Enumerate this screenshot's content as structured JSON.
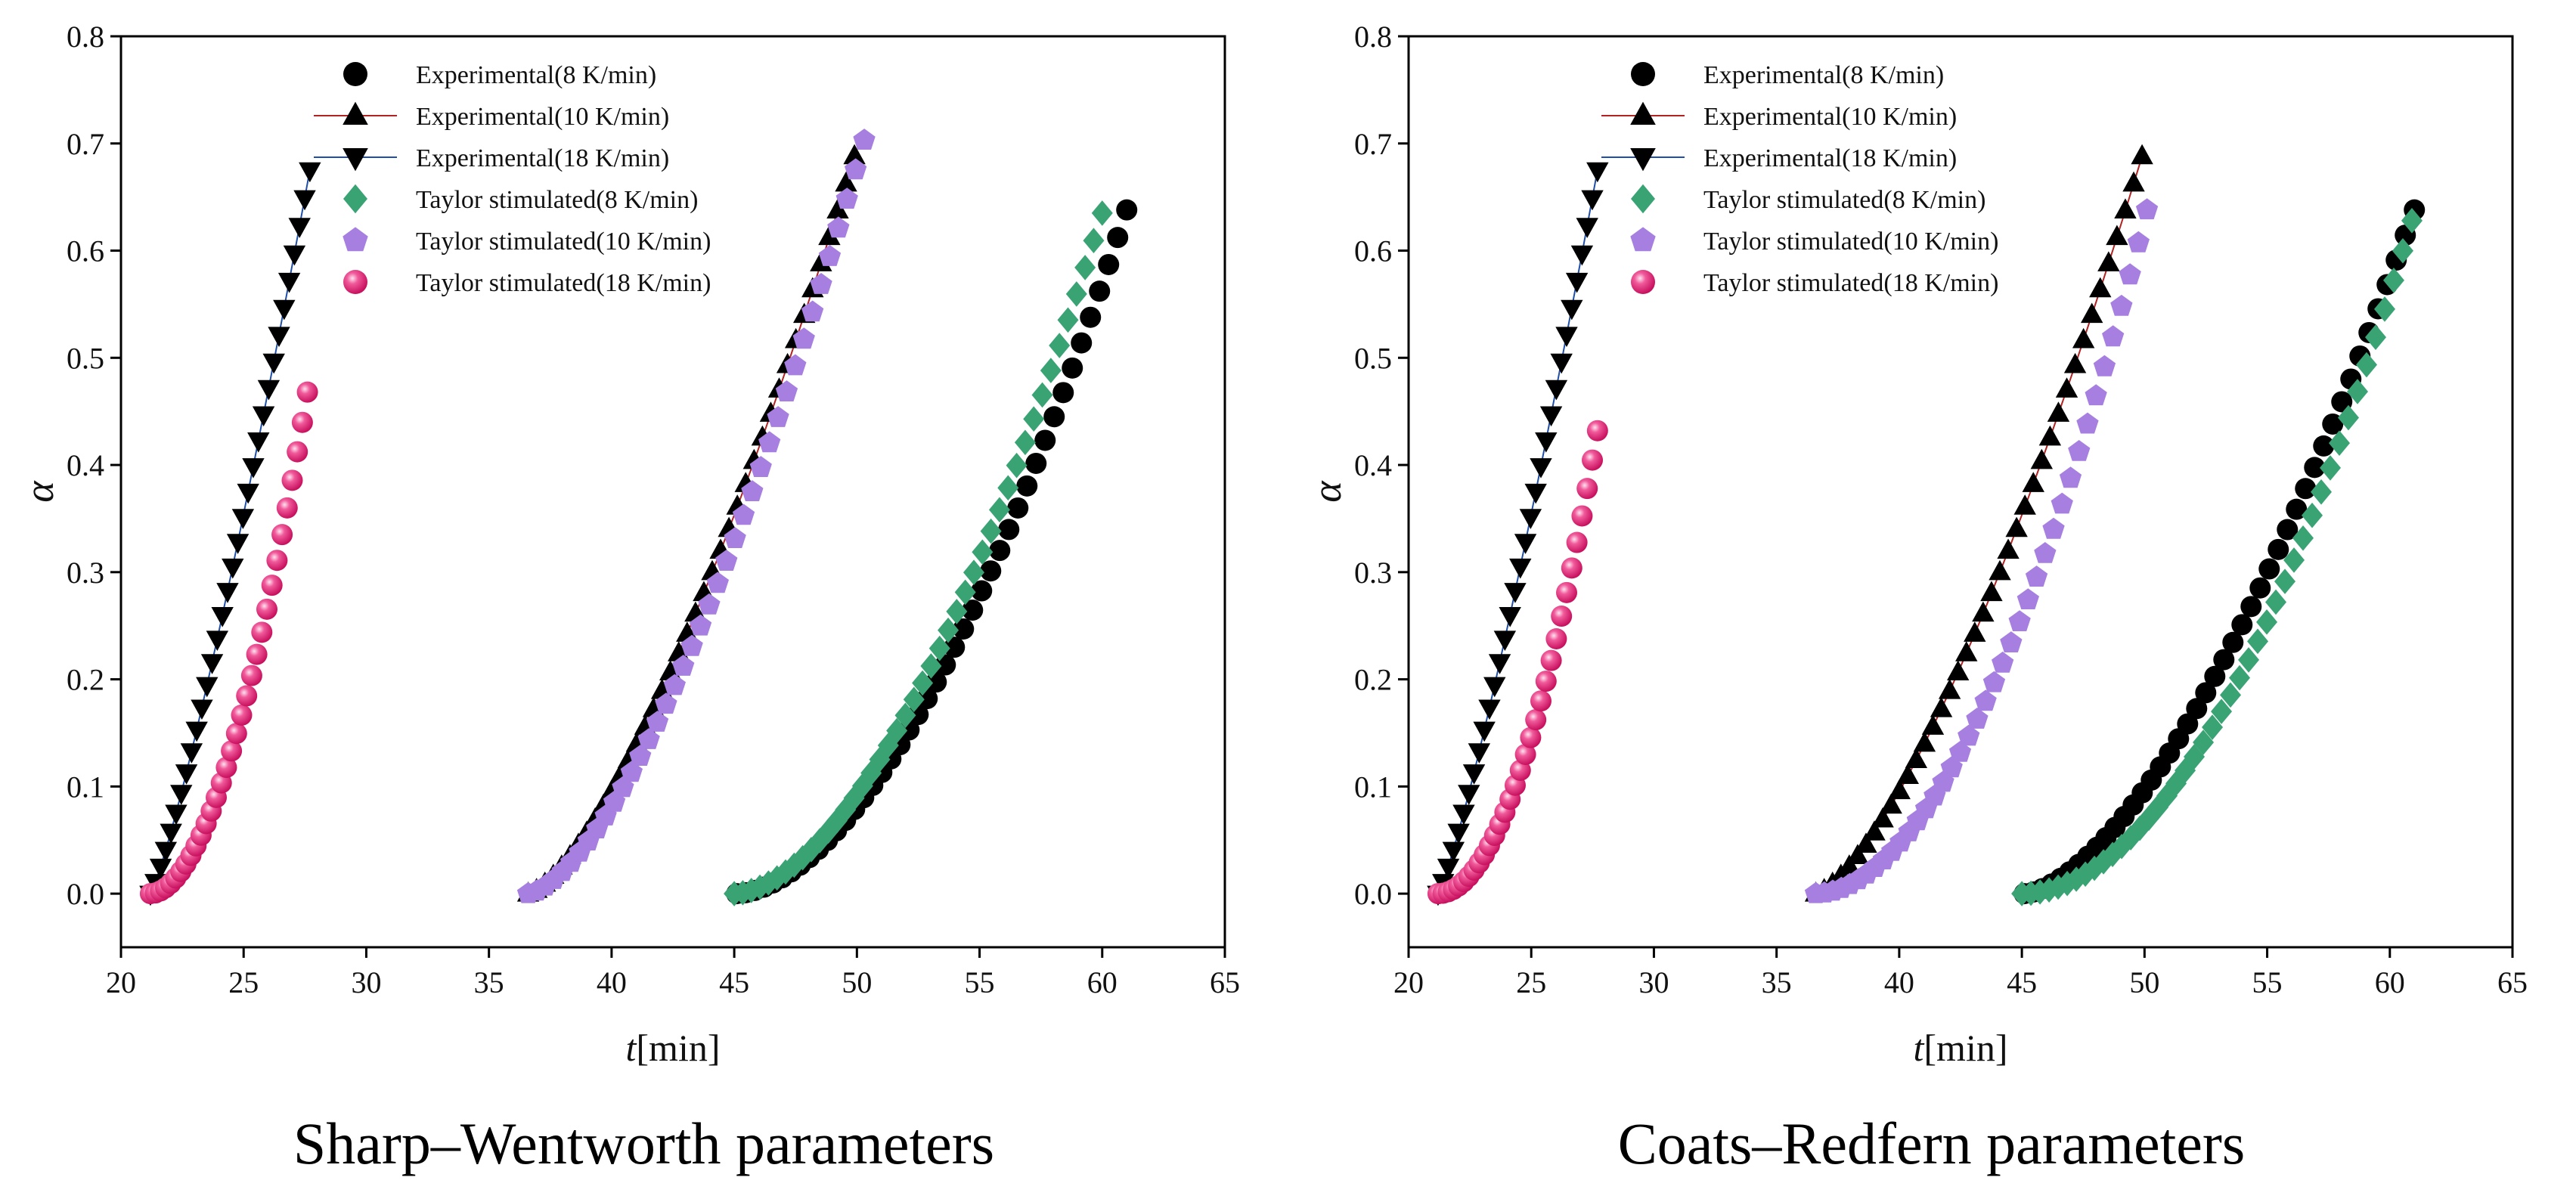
{
  "chart_data": [
    {
      "type": "scatter",
      "caption": "Sharp–Wentworth parameters",
      "xlabel_italic": "t",
      "xlabel_rest": "[min]",
      "ylabel": "α",
      "xlim": [
        20,
        65
      ],
      "ylim": [
        -0.05,
        0.8
      ],
      "xticks": [
        "20",
        "25",
        "30",
        "35",
        "40",
        "45",
        "50",
        "55",
        "60",
        "65"
      ],
      "yticks": [
        "0.0",
        "0.1",
        "0.2",
        "0.3",
        "0.4",
        "0.5",
        "0.6",
        "0.7",
        "0.8"
      ],
      "legend_position": "top-center",
      "series": [
        {
          "name": "Experimental(8 K/min)",
          "marker": "circle",
          "color": "#000000",
          "line": false,
          "t0": 45.1,
          "t1": 61.0,
          "a0": 0.0,
          "a1": 0.638,
          "p": 1.75,
          "n": 44
        },
        {
          "name": "Experimental(10 K/min)",
          "marker": "triangle-up",
          "color": "#000000",
          "line": true,
          "line_color": "#b22222",
          "t0": 36.6,
          "t1": 49.9,
          "a0": 0.0,
          "a1": 0.688,
          "p": 1.45,
          "n": 40
        },
        {
          "name": "Experimental(18 K/min)",
          "marker": "triangle-down",
          "color": "#000000",
          "line": true,
          "line_color": "#1f4fa8",
          "t0": 21.2,
          "t1": 27.7,
          "a0": 0.0,
          "a1": 0.675,
          "p": 1.2,
          "n": 32
        },
        {
          "name": "Taylor stimulated(8 K/min)",
          "marker": "diamond",
          "color": "#3aa374",
          "line": false,
          "t0": 45.0,
          "t1": 60.0,
          "a0": 0.0,
          "a1": 0.635,
          "p": 1.75,
          "n": 44
        },
        {
          "name": "Taylor stimulated(10 K/min)",
          "marker": "pentagon",
          "color": "#a77fe0",
          "line": false,
          "t0": 36.6,
          "t1": 50.3,
          "a0": 0.0,
          "a1": 0.703,
          "p": 1.55,
          "n": 40
        },
        {
          "name": "Taylor stimulated(18 K/min)",
          "marker": "sphere",
          "color": "#e8207a",
          "line": false,
          "t0": 21.2,
          "t1": 27.6,
          "a0": 0.0,
          "a1": 0.468,
          "p": 1.9,
          "n": 32
        }
      ]
    },
    {
      "type": "scatter",
      "caption": "Coats–Redfern parameters",
      "xlabel_italic": "t",
      "xlabel_rest": "[min]",
      "ylabel": "α",
      "xlim": [
        20,
        65
      ],
      "ylim": [
        -0.05,
        0.8
      ],
      "xticks": [
        "20",
        "25",
        "30",
        "35",
        "40",
        "45",
        "50",
        "55",
        "60",
        "65"
      ],
      "yticks": [
        "0.0",
        "0.1",
        "0.2",
        "0.3",
        "0.4",
        "0.5",
        "0.6",
        "0.7",
        "0.8"
      ],
      "legend_position": "top-center",
      "series": [
        {
          "name": "Experimental(8 K/min)",
          "marker": "circle",
          "color": "#000000",
          "line": false,
          "t0": 45.1,
          "t1": 61.0,
          "a0": 0.0,
          "a1": 0.638,
          "p": 1.6,
          "n": 44
        },
        {
          "name": "Experimental(10 K/min)",
          "marker": "triangle-up",
          "color": "#000000",
          "line": true,
          "line_color": "#b22222",
          "t0": 36.6,
          "t1": 49.9,
          "a0": 0.0,
          "a1": 0.688,
          "p": 1.45,
          "n": 40
        },
        {
          "name": "Experimental(18 K/min)",
          "marker": "triangle-down",
          "color": "#000000",
          "line": true,
          "line_color": "#1f4fa8",
          "t0": 21.2,
          "t1": 27.7,
          "a0": 0.0,
          "a1": 0.675,
          "p": 1.2,
          "n": 32
        },
        {
          "name": "Taylor stimulated(8 K/min)",
          "marker": "diamond",
          "color": "#3aa374",
          "line": false,
          "t0": 45.0,
          "t1": 60.9,
          "a0": 0.0,
          "a1": 0.628,
          "p": 1.95,
          "n": 44
        },
        {
          "name": "Taylor stimulated(10 K/min)",
          "marker": "pentagon",
          "color": "#a77fe0",
          "line": false,
          "t0": 36.6,
          "t1": 50.1,
          "a0": 0.0,
          "a1": 0.638,
          "p": 1.9,
          "n": 40
        },
        {
          "name": "Taylor stimulated(18 K/min)",
          "marker": "sphere",
          "color": "#e8207a",
          "line": false,
          "t0": 21.2,
          "t1": 27.7,
          "a0": 0.0,
          "a1": 0.432,
          "p": 2.0,
          "n": 32
        }
      ]
    }
  ]
}
